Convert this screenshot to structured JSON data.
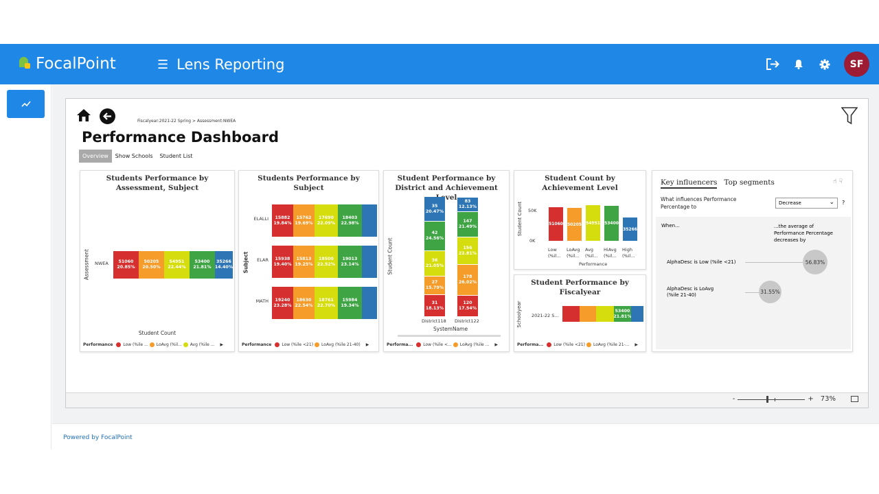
{
  "header": {
    "brand": "FocalPoint",
    "app_title": "Lens Reporting",
    "user_initials": "SF"
  },
  "footer": {
    "powered_by": "Powered by FocalPoint"
  },
  "report": {
    "breadcrumb": "Fiscalyear:2021-22 Spring > Assessment:NWEA",
    "title": "Performance Dashboard",
    "tabs": [
      {
        "label": "Overview",
        "active": true
      },
      {
        "label": "Show Schools",
        "active": false
      },
      {
        "label": "Student List",
        "active": false
      }
    ],
    "zoom": {
      "minus": "-",
      "plus": "+",
      "value": "73%"
    }
  },
  "colors": {
    "low": "#d62f2f",
    "loavg": "#f59c2b",
    "avg": "#d6dd0e",
    "hiavg": "#3fa544",
    "high": "#2e75b6"
  },
  "card1": {
    "title": "Students Performance by Assessment, Subject",
    "y_label": "Assessment",
    "x_label": "Student Count",
    "category": "NWEA",
    "segments": [
      {
        "count": "51060",
        "pct": "20.85%"
      },
      {
        "count": "50205",
        "pct": "20.50%"
      },
      {
        "count": "54951",
        "pct": "22.44%"
      },
      {
        "count": "53400",
        "pct": "21.81%"
      },
      {
        "count": "35266",
        "pct": "14.40%"
      }
    ],
    "legend": {
      "label": "Performance",
      "items": [
        "Low (%ile ...",
        "LoAvg (%il...",
        "Avg (%ile ..."
      ]
    }
  },
  "card2": {
    "title": "Students Performance by Subject",
    "y_label": "Subject",
    "rows": [
      {
        "name": "ELALLI",
        "segments": [
          {
            "count": "15882",
            "pct": "19.84%"
          },
          {
            "count": "15762",
            "pct": "19.69%"
          },
          {
            "count": "17690",
            "pct": "22.09%"
          },
          {
            "count": "18403",
            "pct": "22.98%"
          },
          {
            "count": "",
            "pct": ""
          }
        ]
      },
      {
        "name": "ELAR",
        "segments": [
          {
            "count": "15938",
            "pct": "19.40%"
          },
          {
            "count": "15813",
            "pct": "19.25%"
          },
          {
            "count": "18500",
            "pct": "22.52%"
          },
          {
            "count": "19013",
            "pct": "23.14%"
          },
          {
            "count": "",
            "pct": ""
          }
        ]
      },
      {
        "name": "MATH",
        "segments": [
          {
            "count": "19240",
            "pct": "23.28%"
          },
          {
            "count": "18630",
            "pct": "22.54%"
          },
          {
            "count": "18761",
            "pct": "22.70%"
          },
          {
            "count": "15984",
            "pct": "19.34%"
          },
          {
            "count": "",
            "pct": ""
          }
        ]
      }
    ],
    "legend": {
      "label": "Performance",
      "items": [
        "Low (%ile <21)",
        "LoAvg (%ile 21-40)"
      ]
    }
  },
  "card3": {
    "title": "Student Performance by District and Achievement Level",
    "y_label": "Student Count",
    "x_label": "SystemName",
    "columns": [
      {
        "name": "District118",
        "segments": [
          {
            "count": "31",
            "pct": "18.13%"
          },
          {
            "count": "27",
            "pct": "15.79%"
          },
          {
            "count": "36",
            "pct": "21.05%"
          },
          {
            "count": "42",
            "pct": "24.56%"
          },
          {
            "count": "35",
            "pct": "20.47%"
          }
        ]
      },
      {
        "name": "District122",
        "segments": [
          {
            "count": "120",
            "pct": "17.54%"
          },
          {
            "count": "178",
            "pct": "26.02%"
          },
          {
            "count": "156",
            "pct": "22.81%"
          },
          {
            "count": "147",
            "pct": "21.49%"
          },
          {
            "count": "83",
            "pct": "12.13%"
          }
        ]
      }
    ],
    "legend": {
      "label": "Performa...",
      "items": [
        "Low (%ile <...",
        "LoAvg (%ile ..."
      ]
    }
  },
  "card4": {
    "title": "Student Count by Achievement Level",
    "y_label": "Student Count",
    "x_label": "Performance",
    "y_ticks": [
      "50K",
      "0K"
    ],
    "bars": [
      {
        "label": "51060",
        "value": 51060,
        "cat1": "Low",
        "cat2": "(%il..."
      },
      {
        "label": "50205",
        "value": 50205,
        "cat1": "LoAvg",
        "cat2": "(%il..."
      },
      {
        "label": "54951",
        "value": 54951,
        "cat1": "Avg",
        "cat2": "(%il..."
      },
      {
        "label": "53400",
        "value": 53400,
        "cat1": "HiAvg",
        "cat2": "(%il..."
      },
      {
        "label": "35266",
        "value": 35266,
        "cat1": "High",
        "cat2": "(%il..."
      }
    ]
  },
  "card5": {
    "title": "Student Performance by Fiscalyear",
    "y_label": "Schoolyear",
    "category": "2021-22 S...",
    "segments": [
      {
        "count": "",
        "pct": ""
      },
      {
        "count": "",
        "pct": ""
      },
      {
        "count": "",
        "pct": ""
      },
      {
        "count": "53400",
        "pct": "21.81%"
      },
      {
        "count": "",
        "pct": ""
      }
    ],
    "legend": {
      "label": "Performa...",
      "items": [
        "Low (%ile <21)",
        "LoAvg (%ile 21-..."
      ]
    }
  },
  "card6": {
    "tab_key": "Key influencers",
    "tab_top": "Top segments",
    "question": "What influences Performance Percentage to",
    "select_value": "Decrease",
    "help": "?",
    "when": "When...",
    "avg_text": "...the average of Performance Percentage decreases by",
    "influencers": [
      {
        "label": "AlphaDesc is Low (%ile <21)",
        "value": "56.83%"
      },
      {
        "label": "AlphaDesc is LoAvg (%ile 21-40)",
        "value": "31.55%"
      }
    ]
  }
}
